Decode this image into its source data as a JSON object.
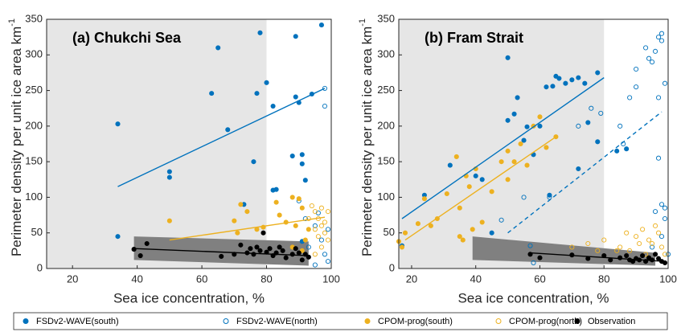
{
  "chart_data": [
    {
      "type": "scatter",
      "title": "(a) Chukchi Sea",
      "xlabel": "Sea ice concentration, %",
      "ylabel": "Perimeter density per unit ice area km",
      "ylabel_sup": "-1",
      "xlim": [
        12,
        100
      ],
      "ylim": [
        0,
        350
      ],
      "xticks": [
        20,
        40,
        60,
        80,
        100
      ],
      "yticks": [
        0,
        50,
        100,
        150,
        200,
        250,
        300,
        350
      ],
      "shade_xmax": 80,
      "series": [
        {
          "name": "FSDv2-WAVE(south)",
          "color": "#0072bd",
          "filled": true,
          "x": [
            34,
            34,
            50,
            50,
            65,
            63,
            68,
            76,
            77,
            78,
            80,
            82,
            88,
            89,
            89,
            90,
            91,
            91,
            92,
            94,
            97,
            82,
            83,
            73,
            91
          ],
          "values": [
            203,
            45,
            128,
            136,
            310,
            246,
            195,
            150,
            246,
            331,
            261,
            228,
            158,
            241,
            326,
            233,
            160,
            147,
            124,
            245,
            342,
            110,
            111,
            90,
            38
          ]
        },
        {
          "name": "FSDv2-WAVE(north)",
          "color": "#0072bd",
          "filled": false,
          "x": [
            98,
            98,
            90,
            92,
            95,
            97,
            98,
            95,
            93,
            99,
            96,
            99
          ],
          "values": [
            253,
            228,
            95,
            70,
            60,
            40,
            20,
            5,
            30,
            10,
            78,
            55
          ]
        },
        {
          "name": "CPOM-prog(south)",
          "color": "#edb120",
          "filled": true,
          "x": [
            50,
            70,
            71,
            72,
            74,
            77,
            79,
            83,
            84,
            86,
            88,
            89,
            90,
            91,
            92,
            93,
            91,
            88
          ],
          "values": [
            67,
            67,
            50,
            90,
            80,
            55,
            58,
            93,
            75,
            65,
            100,
            60,
            98,
            85,
            40,
            55,
            25,
            30
          ]
        },
        {
          "name": "CPOM-prog(north)",
          "color": "#edb120",
          "filled": false,
          "x": [
            94,
            95,
            96,
            97,
            98,
            99,
            95,
            96,
            97,
            98,
            99,
            95,
            93,
            97
          ],
          "values": [
            88,
            80,
            70,
            85,
            65,
            80,
            55,
            45,
            30,
            50,
            40,
            20,
            70,
            60
          ]
        },
        {
          "name": "Observation",
          "color": "#000000",
          "filled": true,
          "x": [
            39,
            41,
            43,
            66,
            70,
            72,
            74,
            75,
            76,
            77,
            78,
            79,
            80,
            81,
            82,
            83,
            84,
            85,
            86,
            88,
            89,
            90,
            91,
            92,
            93
          ],
          "values": [
            27,
            18,
            35,
            17,
            20,
            33,
            22,
            28,
            20,
            30,
            25,
            50,
            23,
            28,
            18,
            22,
            30,
            25,
            15,
            20,
            28,
            22,
            12,
            20,
            16
          ]
        }
      ],
      "band": {
        "color": "#808080",
        "x": [
          39,
          93
        ],
        "upper": [
          45,
          38
        ],
        "lower": [
          12,
          4
        ]
      },
      "fits": [
        {
          "color": "#0072bd",
          "dashed": false,
          "x": [
            34,
            98
          ],
          "y": [
            115,
            253
          ]
        },
        {
          "color": "#edb120",
          "dashed": false,
          "x": [
            50,
            98
          ],
          "y": [
            40,
            72
          ]
        },
        {
          "color": "#000000",
          "dashed": false,
          "x": [
            39,
            93
          ],
          "y": [
            28,
            18
          ]
        }
      ]
    },
    {
      "type": "scatter",
      "title": "(b) Fram Strait",
      "xlabel": "Sea ice concentration, %",
      "ylabel": "Perimeter density per unit ice area km",
      "ylabel_sup": "-1",
      "xlim": [
        16,
        100
      ],
      "ylim": [
        0,
        350
      ],
      "xticks": [
        20,
        40,
        60,
        80,
        100
      ],
      "yticks": [
        0,
        50,
        100,
        150,
        200,
        250,
        300,
        350
      ],
      "shade_xmax": 80,
      "series": [
        {
          "color": "#0072bd",
          "filled": true,
          "x": [
            17,
            24,
            32,
            40,
            42,
            45,
            50,
            50,
            52,
            53,
            55,
            56,
            58,
            60,
            62,
            63,
            64,
            65,
            66,
            68,
            70,
            72,
            74,
            75,
            78,
            72,
            78,
            84,
            87
          ],
          "values": [
            32,
            103,
            145,
            130,
            125,
            50,
            208,
            296,
            217,
            240,
            180,
            199,
            160,
            200,
            255,
            103,
            256,
            270,
            267,
            260,
            265,
            268,
            260,
            205,
            275,
            140,
            178,
            165,
            168
          ]
        },
        {
          "color": "#0072bd",
          "filled": false,
          "x": [
            57,
            58,
            63,
            72,
            76,
            79,
            86,
            88,
            90,
            93,
            94,
            95,
            96,
            97,
            97,
            98,
            98,
            99,
            97,
            98,
            99,
            96,
            99,
            98,
            95,
            100,
            90,
            85,
            48,
            55
          ],
          "values": [
            32,
            8,
            100,
            200,
            225,
            218,
            175,
            240,
            255,
            310,
            295,
            290,
            305,
            240,
            325,
            330,
            320,
            260,
            155,
            90,
            85,
            80,
            70,
            45,
            30,
            20,
            280,
            200,
            68,
            100
          ]
        },
        {
          "color": "#edb120",
          "filled": true,
          "x": [
            16,
            17,
            18,
            22,
            24,
            26,
            28,
            31,
            34,
            35,
            35,
            36,
            37,
            38,
            39,
            40,
            42,
            45,
            48,
            50,
            52,
            54,
            56,
            58,
            60,
            62,
            65,
            50
          ],
          "values": [
            38,
            30,
            50,
            63,
            98,
            60,
            70,
            105,
            157,
            85,
            45,
            40,
            130,
            115,
            55,
            140,
            65,
            108,
            150,
            165,
            150,
            175,
            145,
            200,
            213,
            170,
            185,
            125
          ]
        },
        {
          "color": "#edb120",
          "filled": false,
          "x": [
            70,
            75,
            80,
            85,
            88,
            90,
            92,
            94,
            95,
            96,
            97,
            98,
            99,
            93,
            91,
            87,
            84,
            78
          ],
          "values": [
            30,
            35,
            40,
            30,
            25,
            45,
            55,
            40,
            35,
            60,
            50,
            30,
            20,
            20,
            35,
            50,
            25,
            25
          ]
        },
        {
          "color": "#000000",
          "filled": true,
          "x": [
            57,
            60,
            70,
            75,
            80,
            82,
            85,
            87,
            88,
            89,
            90,
            91,
            92,
            93,
            94,
            95,
            96,
            97,
            98,
            99
          ],
          "values": [
            20,
            15,
            19,
            14,
            18,
            12,
            15,
            18,
            12,
            10,
            14,
            12,
            18,
            10,
            15,
            12,
            20,
            14,
            10,
            8
          ]
        }
      ],
      "band": {
        "color": "#808080",
        "x": [
          39,
          96
        ],
        "upper": [
          45,
          22
        ],
        "lower": [
          12,
          4
        ]
      },
      "fits": [
        {
          "color": "#0072bd",
          "dashed": false,
          "x": [
            17,
            80
          ],
          "y": [
            70,
            268
          ]
        },
        {
          "color": "#0072bd",
          "dashed": true,
          "x": [
            50,
            98
          ],
          "y": [
            50,
            220
          ]
        },
        {
          "color": "#edb120",
          "dashed": false,
          "x": [
            18,
            65
          ],
          "y": [
            40,
            185
          ]
        },
        {
          "color": "#000000",
          "dashed": false,
          "x": [
            57,
            99
          ],
          "y": [
            22,
            10
          ]
        }
      ]
    }
  ]
}
